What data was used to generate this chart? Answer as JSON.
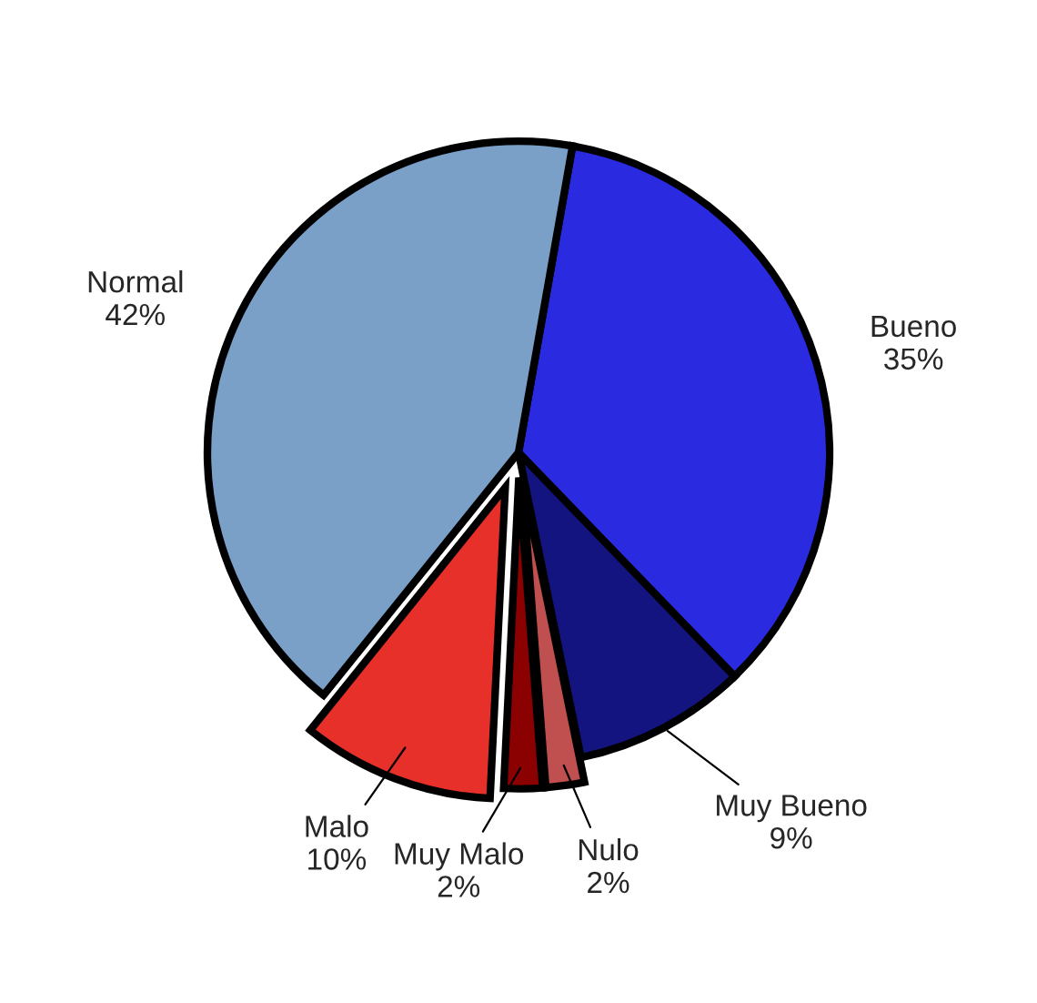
{
  "chart_data": {
    "type": "pie",
    "categories": [
      "Bueno",
      "Muy Bueno",
      "Nulo",
      "Muy Malo",
      "Malo",
      "Normal"
    ],
    "values": [
      35,
      9,
      2,
      2,
      10,
      42
    ],
    "value_labels": [
      "35%",
      "9%",
      "2%",
      "2%",
      "10%",
      "42%"
    ],
    "colors": [
      "#2a2ae0",
      "#141480",
      "#c05050",
      "#8b0000",
      "#e8302a",
      "#7aa0c8"
    ],
    "legend": false
  }
}
